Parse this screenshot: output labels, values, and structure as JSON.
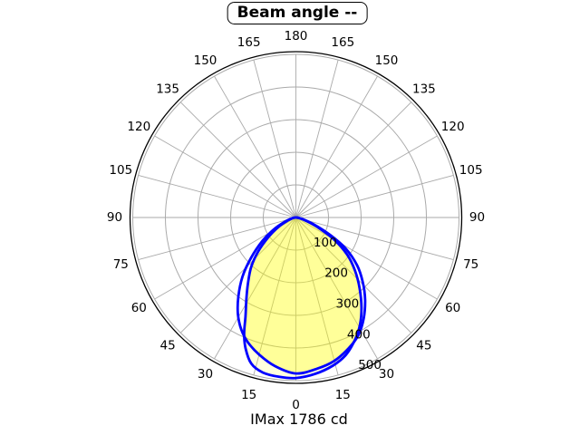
{
  "title": {
    "label": "Beam angle --"
  },
  "footer": {
    "imax_label": "IMax 1786 cd"
  },
  "chart_data": {
    "type": "line",
    "subtype": "polar-photometric",
    "title": "Beam angle --",
    "annotation": "IMax 1786 cd",
    "imax_cd": 1786,
    "units": "cd",
    "angle_axis": {
      "zero_position": "bottom",
      "mirrored": true,
      "ticks_deg": [
        0,
        15,
        30,
        45,
        60,
        75,
        90,
        105,
        120,
        135,
        150,
        165,
        180
      ]
    },
    "radial_axis": {
      "ticks": [
        100,
        200,
        300,
        400,
        500
      ],
      "max": 500
    },
    "grid": {
      "on": true,
      "color": "#aaaaaa",
      "border_color": "#000000"
    },
    "series": [
      {
        "name": "beam-curve-1",
        "color": "#0000ff",
        "points_deg_cd": [
          [
            -90,
            0
          ],
          [
            -83,
            6
          ],
          [
            -76,
            16
          ],
          [
            -69,
            36
          ],
          [
            -62,
            75
          ],
          [
            -55,
            125
          ],
          [
            -48,
            185
          ],
          [
            -42,
            245
          ],
          [
            -36,
            300
          ],
          [
            -31,
            345
          ],
          [
            -26,
            382
          ],
          [
            -21,
            410
          ],
          [
            -15,
            435
          ],
          [
            -8,
            460
          ],
          [
            0,
            478
          ],
          [
            8,
            468
          ],
          [
            15,
            455
          ],
          [
            22,
            432
          ],
          [
            28,
            408
          ],
          [
            34,
            372
          ],
          [
            40,
            330
          ],
          [
            46,
            285
          ],
          [
            52,
            238
          ],
          [
            58,
            180
          ],
          [
            63,
            118
          ],
          [
            69,
            58
          ],
          [
            76,
            22
          ],
          [
            83,
            8
          ],
          [
            90,
            0
          ]
        ]
      },
      {
        "name": "beam-curve-2",
        "color": "#0000ff",
        "points_deg_cd": [
          [
            -90,
            0
          ],
          [
            -83,
            5
          ],
          [
            -76,
            13
          ],
          [
            -69,
            28
          ],
          [
            -62,
            58
          ],
          [
            -55,
            100
          ],
          [
            -48,
            155
          ],
          [
            -42,
            205
          ],
          [
            -36,
            250
          ],
          [
            -31,
            295
          ],
          [
            -27,
            340
          ],
          [
            -24,
            390
          ],
          [
            -21,
            430
          ],
          [
            -17,
            468
          ],
          [
            -12,
            486
          ],
          [
            -6,
            491
          ],
          [
            0,
            492
          ],
          [
            7,
            483
          ],
          [
            14,
            468
          ],
          [
            20,
            448
          ],
          [
            26,
            415
          ],
          [
            31,
            382
          ],
          [
            36,
            342
          ],
          [
            42,
            292
          ],
          [
            48,
            244
          ],
          [
            54,
            195
          ],
          [
            60,
            135
          ],
          [
            66,
            72
          ],
          [
            73,
            30
          ],
          [
            80,
            11
          ],
          [
            90,
            0
          ]
        ]
      }
    ],
    "fill": {
      "single_color": "rgba(255,255,0,0.13)",
      "overlap_color": "rgba(255,255,0,0.31)",
      "result_bright": "#ffff99",
      "result_pale": "#ffffde"
    }
  }
}
